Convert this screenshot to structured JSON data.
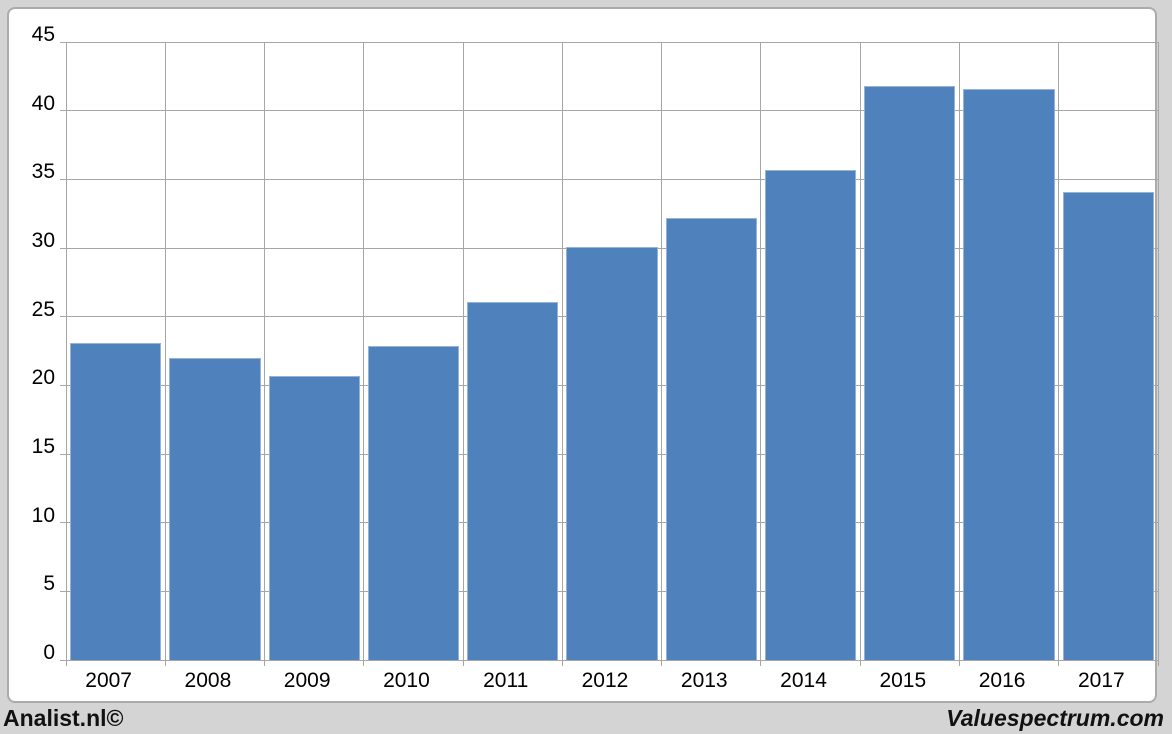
{
  "colors": {
    "page_bg": "#d4d4d4",
    "chart_bg": "#ffffff",
    "frame_border": "#ababab",
    "grid": "#a6a6a6",
    "bar_fill": "#4f81bd",
    "bar_border": "#95b3d7",
    "text": "#000000"
  },
  "footer": {
    "left": "Analist.nl©",
    "right": "Valuespectrum.com"
  },
  "chart_data": {
    "type": "bar",
    "title": "",
    "xlabel": "",
    "ylabel": "",
    "categories": [
      "2007",
      "2008",
      "2009",
      "2010",
      "2011",
      "2012",
      "2013",
      "2014",
      "2015",
      "2016",
      "2017"
    ],
    "values": [
      23.1,
      22.0,
      20.7,
      22.9,
      26.1,
      30.1,
      32.2,
      35.7,
      41.8,
      41.6,
      34.1
    ],
    "ylim": [
      0,
      45
    ],
    "yticks": [
      0,
      5,
      10,
      15,
      20,
      25,
      30,
      35,
      40,
      45
    ],
    "grid": true,
    "legend": "none"
  }
}
